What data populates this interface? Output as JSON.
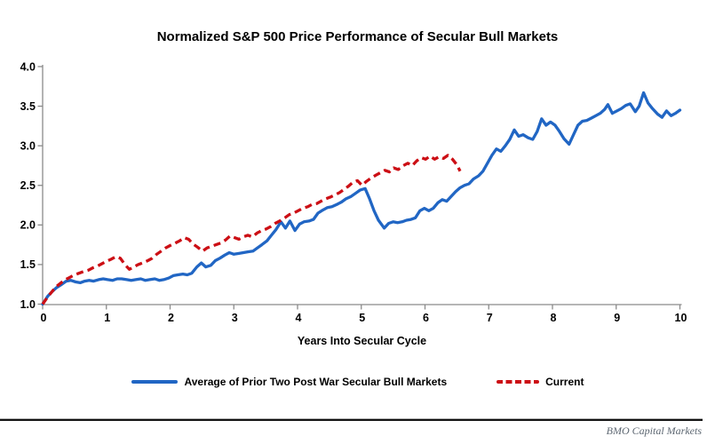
{
  "footer": {
    "brand": "BMO Capital Markets"
  },
  "chart_data": {
    "type": "line",
    "title": "Normalized S&P 500 Price Performance of Secular Bull Markets",
    "xlabel": "Years Into Secular Cycle",
    "ylabel": "",
    "xlim": [
      0,
      10
    ],
    "ylim": [
      1.0,
      4.0
    ],
    "x_ticks": [
      0,
      1,
      2,
      3,
      4,
      5,
      6,
      7,
      8,
      9,
      10
    ],
    "y_ticks": [
      1.0,
      1.5,
      2.0,
      2.5,
      3.0,
      3.5,
      4.0
    ],
    "grid": false,
    "legend_position": "bottom",
    "axis_color": "#8a8a8a",
    "series": [
      {
        "name": "Average of Prior Two Post War Secular Bull Markets",
        "color": "#2166c4",
        "style": "solid",
        "points": [
          [
            0.0,
            1.0
          ],
          [
            0.08,
            1.1
          ],
          [
            0.15,
            1.16
          ],
          [
            0.22,
            1.21
          ],
          [
            0.3,
            1.25
          ],
          [
            0.37,
            1.29
          ],
          [
            0.44,
            1.3
          ],
          [
            0.52,
            1.28
          ],
          [
            0.59,
            1.27
          ],
          [
            0.66,
            1.29
          ],
          [
            0.73,
            1.3
          ],
          [
            0.8,
            1.29
          ],
          [
            0.88,
            1.31
          ],
          [
            0.95,
            1.32
          ],
          [
            1.02,
            1.31
          ],
          [
            1.1,
            1.3
          ],
          [
            1.17,
            1.32
          ],
          [
            1.24,
            1.32
          ],
          [
            1.32,
            1.31
          ],
          [
            1.39,
            1.3
          ],
          [
            1.46,
            1.31
          ],
          [
            1.54,
            1.32
          ],
          [
            1.61,
            1.3
          ],
          [
            1.68,
            1.31
          ],
          [
            1.76,
            1.32
          ],
          [
            1.83,
            1.3
          ],
          [
            1.9,
            1.31
          ],
          [
            1.98,
            1.33
          ],
          [
            2.05,
            1.36
          ],
          [
            2.12,
            1.37
          ],
          [
            2.2,
            1.38
          ],
          [
            2.27,
            1.37
          ],
          [
            2.34,
            1.39
          ],
          [
            2.42,
            1.47
          ],
          [
            2.49,
            1.52
          ],
          [
            2.56,
            1.47
          ],
          [
            2.64,
            1.49
          ],
          [
            2.71,
            1.55
          ],
          [
            2.78,
            1.58
          ],
          [
            2.86,
            1.62
          ],
          [
            2.93,
            1.65
          ],
          [
            3.0,
            1.63
          ],
          [
            3.08,
            1.64
          ],
          [
            3.15,
            1.65
          ],
          [
            3.22,
            1.66
          ],
          [
            3.3,
            1.67
          ],
          [
            3.37,
            1.71
          ],
          [
            3.44,
            1.75
          ],
          [
            3.52,
            1.8
          ],
          [
            3.59,
            1.87
          ],
          [
            3.66,
            1.94
          ],
          [
            3.74,
            2.04
          ],
          [
            3.81,
            1.96
          ],
          [
            3.88,
            2.05
          ],
          [
            3.96,
            1.93
          ],
          [
            4.03,
            2.01
          ],
          [
            4.1,
            2.04
          ],
          [
            4.18,
            2.05
          ],
          [
            4.25,
            2.07
          ],
          [
            4.32,
            2.15
          ],
          [
            4.4,
            2.19
          ],
          [
            4.47,
            2.22
          ],
          [
            4.54,
            2.23
          ],
          [
            4.62,
            2.26
          ],
          [
            4.69,
            2.29
          ],
          [
            4.76,
            2.33
          ],
          [
            4.84,
            2.36
          ],
          [
            4.91,
            2.4
          ],
          [
            4.98,
            2.44
          ],
          [
            5.06,
            2.46
          ],
          [
            5.13,
            2.33
          ],
          [
            5.2,
            2.18
          ],
          [
            5.27,
            2.06
          ],
          [
            5.36,
            1.96
          ],
          [
            5.43,
            2.02
          ],
          [
            5.5,
            2.04
          ],
          [
            5.57,
            2.03
          ],
          [
            5.64,
            2.04
          ],
          [
            5.71,
            2.06
          ],
          [
            5.78,
            2.07
          ],
          [
            5.85,
            2.09
          ],
          [
            5.92,
            2.18
          ],
          [
            5.99,
            2.21
          ],
          [
            6.06,
            2.18
          ],
          [
            6.13,
            2.21
          ],
          [
            6.2,
            2.28
          ],
          [
            6.27,
            2.32
          ],
          [
            6.34,
            2.3
          ],
          [
            6.41,
            2.36
          ],
          [
            6.48,
            2.42
          ],
          [
            6.55,
            2.47
          ],
          [
            6.62,
            2.5
          ],
          [
            6.69,
            2.52
          ],
          [
            6.76,
            2.58
          ],
          [
            6.84,
            2.62
          ],
          [
            6.91,
            2.68
          ],
          [
            6.98,
            2.78
          ],
          [
            7.05,
            2.88
          ],
          [
            7.12,
            2.96
          ],
          [
            7.19,
            2.93
          ],
          [
            7.26,
            3.0
          ],
          [
            7.33,
            3.08
          ],
          [
            7.4,
            3.2
          ],
          [
            7.47,
            3.12
          ],
          [
            7.54,
            3.14
          ],
          [
            7.62,
            3.1
          ],
          [
            7.69,
            3.08
          ],
          [
            7.76,
            3.18
          ],
          [
            7.83,
            3.34
          ],
          [
            7.9,
            3.26
          ],
          [
            7.97,
            3.3
          ],
          [
            8.04,
            3.26
          ],
          [
            8.11,
            3.18
          ],
          [
            8.18,
            3.09
          ],
          [
            8.26,
            3.02
          ],
          [
            8.33,
            3.14
          ],
          [
            8.4,
            3.26
          ],
          [
            8.47,
            3.31
          ],
          [
            8.54,
            3.32
          ],
          [
            8.61,
            3.35
          ],
          [
            8.68,
            3.38
          ],
          [
            8.75,
            3.41
          ],
          [
            8.82,
            3.46
          ],
          [
            8.87,
            3.52
          ],
          [
            8.94,
            3.41
          ],
          [
            9.01,
            3.44
          ],
          [
            9.08,
            3.47
          ],
          [
            9.15,
            3.51
          ],
          [
            9.22,
            3.53
          ],
          [
            9.3,
            3.43
          ],
          [
            9.36,
            3.5
          ],
          [
            9.43,
            3.67
          ],
          [
            9.5,
            3.54
          ],
          [
            9.57,
            3.47
          ],
          [
            9.65,
            3.4
          ],
          [
            9.72,
            3.36
          ],
          [
            9.79,
            3.44
          ],
          [
            9.86,
            3.38
          ],
          [
            9.93,
            3.41
          ],
          [
            10.0,
            3.45
          ]
        ]
      },
      {
        "name": "Current",
        "color": "#cc0f15",
        "style": "dashed",
        "points": [
          [
            0.0,
            1.0
          ],
          [
            0.07,
            1.08
          ],
          [
            0.14,
            1.15
          ],
          [
            0.21,
            1.22
          ],
          [
            0.29,
            1.27
          ],
          [
            0.36,
            1.31
          ],
          [
            0.43,
            1.34
          ],
          [
            0.5,
            1.37
          ],
          [
            0.57,
            1.39
          ],
          [
            0.64,
            1.41
          ],
          [
            0.72,
            1.43
          ],
          [
            0.79,
            1.46
          ],
          [
            0.86,
            1.48
          ],
          [
            0.93,
            1.51
          ],
          [
            1.0,
            1.54
          ],
          [
            1.08,
            1.57
          ],
          [
            1.15,
            1.6
          ],
          [
            1.22,
            1.58
          ],
          [
            1.29,
            1.5
          ],
          [
            1.36,
            1.44
          ],
          [
            1.43,
            1.47
          ],
          [
            1.5,
            1.5
          ],
          [
            1.57,
            1.52
          ],
          [
            1.65,
            1.55
          ],
          [
            1.72,
            1.58
          ],
          [
            1.79,
            1.63
          ],
          [
            1.86,
            1.67
          ],
          [
            1.93,
            1.71
          ],
          [
            2.0,
            1.74
          ],
          [
            2.08,
            1.77
          ],
          [
            2.15,
            1.8
          ],
          [
            2.22,
            1.84
          ],
          [
            2.29,
            1.82
          ],
          [
            2.36,
            1.76
          ],
          [
            2.43,
            1.72
          ],
          [
            2.51,
            1.67
          ],
          [
            2.58,
            1.71
          ],
          [
            2.65,
            1.73
          ],
          [
            2.72,
            1.75
          ],
          [
            2.79,
            1.77
          ],
          [
            2.87,
            1.81
          ],
          [
            2.94,
            1.86
          ],
          [
            3.01,
            1.84
          ],
          [
            3.08,
            1.82
          ],
          [
            3.15,
            1.85
          ],
          [
            3.22,
            1.87
          ],
          [
            3.29,
            1.85
          ],
          [
            3.37,
            1.9
          ],
          [
            3.44,
            1.93
          ],
          [
            3.51,
            1.95
          ],
          [
            3.58,
            1.98
          ],
          [
            3.65,
            2.02
          ],
          [
            3.72,
            2.05
          ],
          [
            3.8,
            2.09
          ],
          [
            3.87,
            2.13
          ],
          [
            3.94,
            2.15
          ],
          [
            4.01,
            2.18
          ],
          [
            4.08,
            2.21
          ],
          [
            4.16,
            2.23
          ],
          [
            4.23,
            2.26
          ],
          [
            4.3,
            2.27
          ],
          [
            4.37,
            2.3
          ],
          [
            4.44,
            2.33
          ],
          [
            4.51,
            2.35
          ],
          [
            4.59,
            2.38
          ],
          [
            4.66,
            2.41
          ],
          [
            4.73,
            2.45
          ],
          [
            4.8,
            2.49
          ],
          [
            4.87,
            2.54
          ],
          [
            4.94,
            2.56
          ],
          [
            5.01,
            2.5
          ],
          [
            5.08,
            2.55
          ],
          [
            5.15,
            2.59
          ],
          [
            5.23,
            2.63
          ],
          [
            5.3,
            2.66
          ],
          [
            5.37,
            2.69
          ],
          [
            5.44,
            2.67
          ],
          [
            5.51,
            2.72
          ],
          [
            5.58,
            2.7
          ],
          [
            5.66,
            2.75
          ],
          [
            5.73,
            2.78
          ],
          [
            5.8,
            2.75
          ],
          [
            5.87,
            2.81
          ],
          [
            5.94,
            2.85
          ],
          [
            6.01,
            2.83
          ],
          [
            6.08,
            2.87
          ],
          [
            6.15,
            2.83
          ],
          [
            6.22,
            2.86
          ],
          [
            6.29,
            2.84
          ],
          [
            6.36,
            2.88
          ],
          [
            6.43,
            2.83
          ],
          [
            6.5,
            2.76
          ],
          [
            6.55,
            2.68
          ]
        ]
      }
    ]
  }
}
